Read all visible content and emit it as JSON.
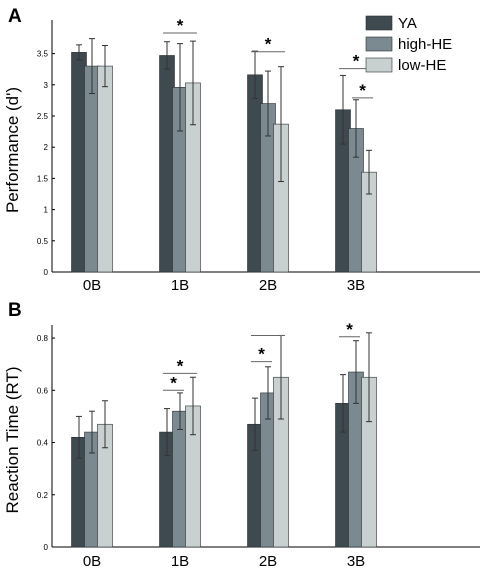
{
  "colors": {
    "YA": "#3f4950",
    "high-HE": "#7b8a91",
    "low-HE": "#c8d0d0",
    "axis": "#000000",
    "error": "#333333",
    "bracket": "#666666"
  },
  "legend": {
    "items": [
      "YA",
      "high-HE",
      "low-HE"
    ],
    "placement": "top-right"
  },
  "chart_data": [
    {
      "type": "bar",
      "panel": "A",
      "title": "",
      "xlabel": "",
      "ylabel": "Performance (d')",
      "ylim": [
        0,
        3.75
      ],
      "yticks": [
        0,
        0.5,
        1,
        1.5,
        2,
        2.5,
        3,
        3.5
      ],
      "ytick_labels": [
        "0",
        "0.5",
        "1",
        "1.5",
        "2",
        "2.5",
        "3",
        "3.5"
      ],
      "categories": [
        "0B",
        "1B",
        "2B",
        "3B"
      ],
      "series": [
        {
          "name": "YA",
          "values": [
            3.52,
            3.47,
            3.16,
            2.6
          ],
          "errors": [
            0.12,
            0.22,
            0.38,
            0.55
          ]
        },
        {
          "name": "high-HE",
          "values": [
            3.3,
            2.96,
            2.7,
            2.3
          ],
          "errors": [
            0.44,
            0.7,
            0.52,
            0.46
          ]
        },
        {
          "name": "low-HE",
          "values": [
            3.3,
            3.03,
            2.37,
            1.6
          ],
          "errors": [
            0.33,
            0.67,
            0.92,
            0.35
          ]
        }
      ],
      "significance": [
        {
          "category": "1B",
          "from": "YA",
          "to": "low-HE",
          "y": 3.83,
          "label": "*"
        },
        {
          "category": "2B",
          "from": "YA",
          "to": "low-HE",
          "y": 3.53,
          "label": "*"
        },
        {
          "category": "3B",
          "from": "YA",
          "to": "low-HE",
          "y": 3.26,
          "label": "*"
        },
        {
          "category": "3B",
          "from": "high-HE",
          "to": "low-HE",
          "y": 2.79,
          "label": "*"
        }
      ]
    },
    {
      "type": "bar",
      "panel": "B",
      "title": "",
      "xlabel": "",
      "ylabel": "Reaction Time (RT)",
      "ylim": [
        0,
        0.85
      ],
      "yticks": [
        0,
        0.2,
        0.4,
        0.6,
        0.8
      ],
      "ytick_labels": [
        "0",
        "0.2",
        "0.4",
        "0.6",
        "0.8"
      ],
      "categories": [
        "0B",
        "1B",
        "2B",
        "3B"
      ],
      "series": [
        {
          "name": "YA",
          "values": [
            0.42,
            0.44,
            0.47,
            0.55
          ],
          "errors": [
            0.08,
            0.09,
            0.1,
            0.11
          ]
        },
        {
          "name": "high-HE",
          "values": [
            0.44,
            0.52,
            0.59,
            0.67
          ],
          "errors": [
            0.08,
            0.07,
            0.1,
            0.12
          ]
        },
        {
          "name": "low-HE",
          "values": [
            0.47,
            0.54,
            0.65,
            0.65
          ],
          "errors": [
            0.09,
            0.11,
            0.16,
            0.17
          ]
        }
      ],
      "significance": [
        {
          "category": "1B",
          "from": "YA",
          "to": "high-HE",
          "y": 0.6,
          "label": "*"
        },
        {
          "category": "1B",
          "from": "YA",
          "to": "low-HE",
          "y": 0.665,
          "label": "*"
        },
        {
          "category": "2B",
          "from": "YA",
          "to": "high-HE",
          "y": 0.71,
          "label": "*"
        },
        {
          "category": "2B",
          "from": "YA",
          "to": "low-HE",
          "y": 0.81,
          "label": ""
        },
        {
          "category": "3B",
          "from": "YA",
          "to": "high-HE",
          "y": 0.805,
          "label": "*"
        }
      ]
    }
  ]
}
